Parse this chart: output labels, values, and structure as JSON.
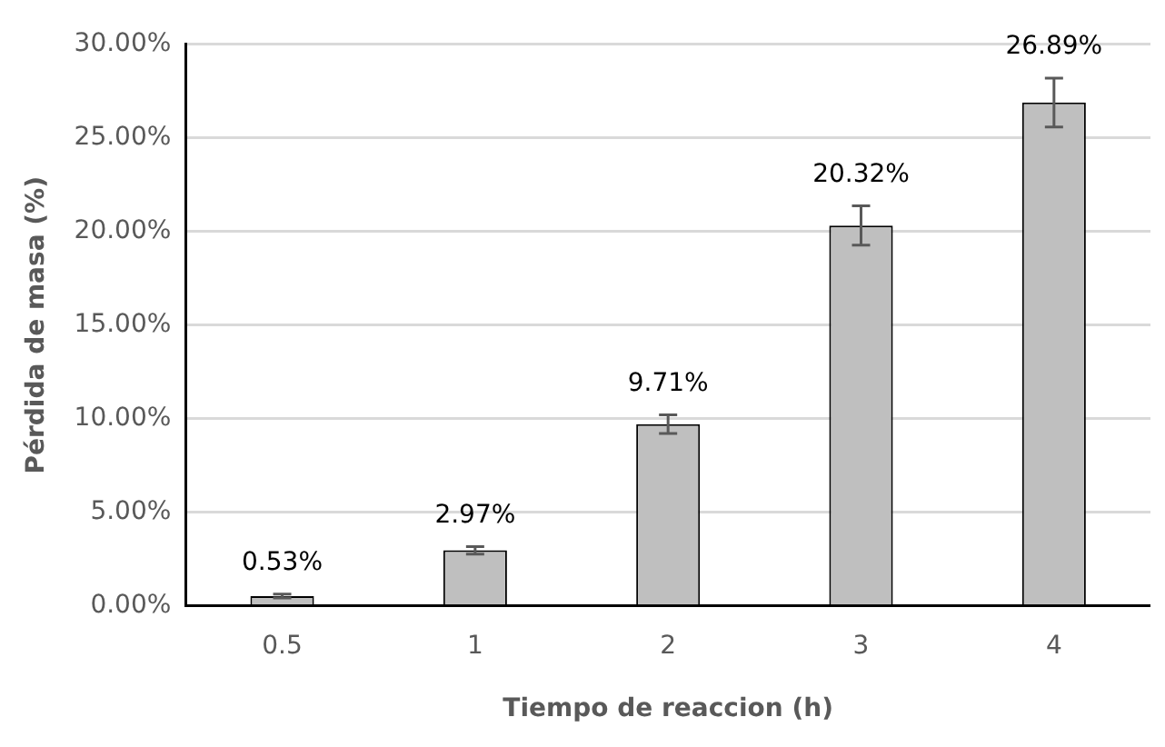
{
  "chart_data": {
    "type": "bar",
    "xlabel": "Tiempo de reaccion (h)",
    "ylabel": "Pérdida de masa (%)",
    "categories": [
      "0.5",
      "1",
      "2",
      "3",
      "4"
    ],
    "values": [
      0.53,
      2.97,
      9.71,
      20.32,
      26.89
    ],
    "errors": [
      0.1,
      0.2,
      0.5,
      1.05,
      1.3
    ],
    "value_labels": [
      "0.53%",
      "2.97%",
      "9.71%",
      "20.32%",
      "26.89%"
    ],
    "color": "#bfbfbf",
    "ylim": [
      0,
      30
    ],
    "yticks": [
      {
        "value": 0,
        "label": "0.00%"
      },
      {
        "value": 5,
        "label": "5.00%"
      },
      {
        "value": 10,
        "label": "10.00%"
      },
      {
        "value": 15,
        "label": "15.00%"
      },
      {
        "value": 20,
        "label": "20.00%"
      },
      {
        "value": 25,
        "label": "25.00%"
      },
      {
        "value": 30,
        "label": "30.00%"
      }
    ],
    "grid": "y",
    "legend": false
  }
}
